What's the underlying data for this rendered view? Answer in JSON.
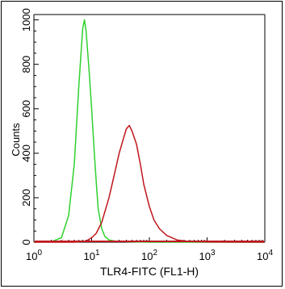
{
  "chart_data": {
    "type": "line",
    "title": "",
    "xlabel": "TLR4-FITC (FL1-H)",
    "ylabel": "Counts",
    "x_scale": "log",
    "xlim": [
      1,
      10000
    ],
    "ylim": [
      0,
      1024
    ],
    "x_ticks": [
      {
        "value": 1,
        "base": "10",
        "exp": "0"
      },
      {
        "value": 10,
        "base": "10",
        "exp": "1"
      },
      {
        "value": 100,
        "base": "10",
        "exp": "2"
      },
      {
        "value": 1000,
        "base": "10",
        "exp": "3"
      },
      {
        "value": 10000,
        "base": "10",
        "exp": "4"
      }
    ],
    "y_ticks": [
      "0",
      "200",
      "400",
      "600",
      "800",
      "1000"
    ],
    "y_tick_values": [
      0,
      200,
      400,
      600,
      800,
      1000
    ],
    "grid": false,
    "series": [
      {
        "color": "#2fd12f",
        "x": [
          1,
          2,
          3,
          4,
          5,
          6,
          7,
          7.5,
          8,
          9,
          10,
          11,
          12,
          13,
          15,
          17,
          20,
          25,
          40,
          100,
          1000,
          10000
        ],
        "y": [
          0,
          2,
          20,
          120,
          350,
          700,
          960,
          1000,
          950,
          780,
          600,
          420,
          270,
          150,
          60,
          25,
          10,
          5,
          2,
          0,
          0,
          0
        ]
      },
      {
        "color": "#c0151c",
        "x": [
          1,
          5,
          8,
          10,
          12,
          15,
          20,
          25,
          30,
          35,
          40,
          45,
          50,
          60,
          70,
          80,
          100,
          120,
          150,
          200,
          300,
          500,
          1000,
          10000
        ],
        "y": [
          0,
          0,
          5,
          20,
          40,
          90,
          200,
          310,
          400,
          460,
          510,
          525,
          500,
          440,
          350,
          260,
          160,
          100,
          60,
          30,
          10,
          3,
          1,
          0
        ]
      }
    ],
    "colors": {
      "axis": "#000000",
      "baseline": "#c0151c"
    }
  }
}
